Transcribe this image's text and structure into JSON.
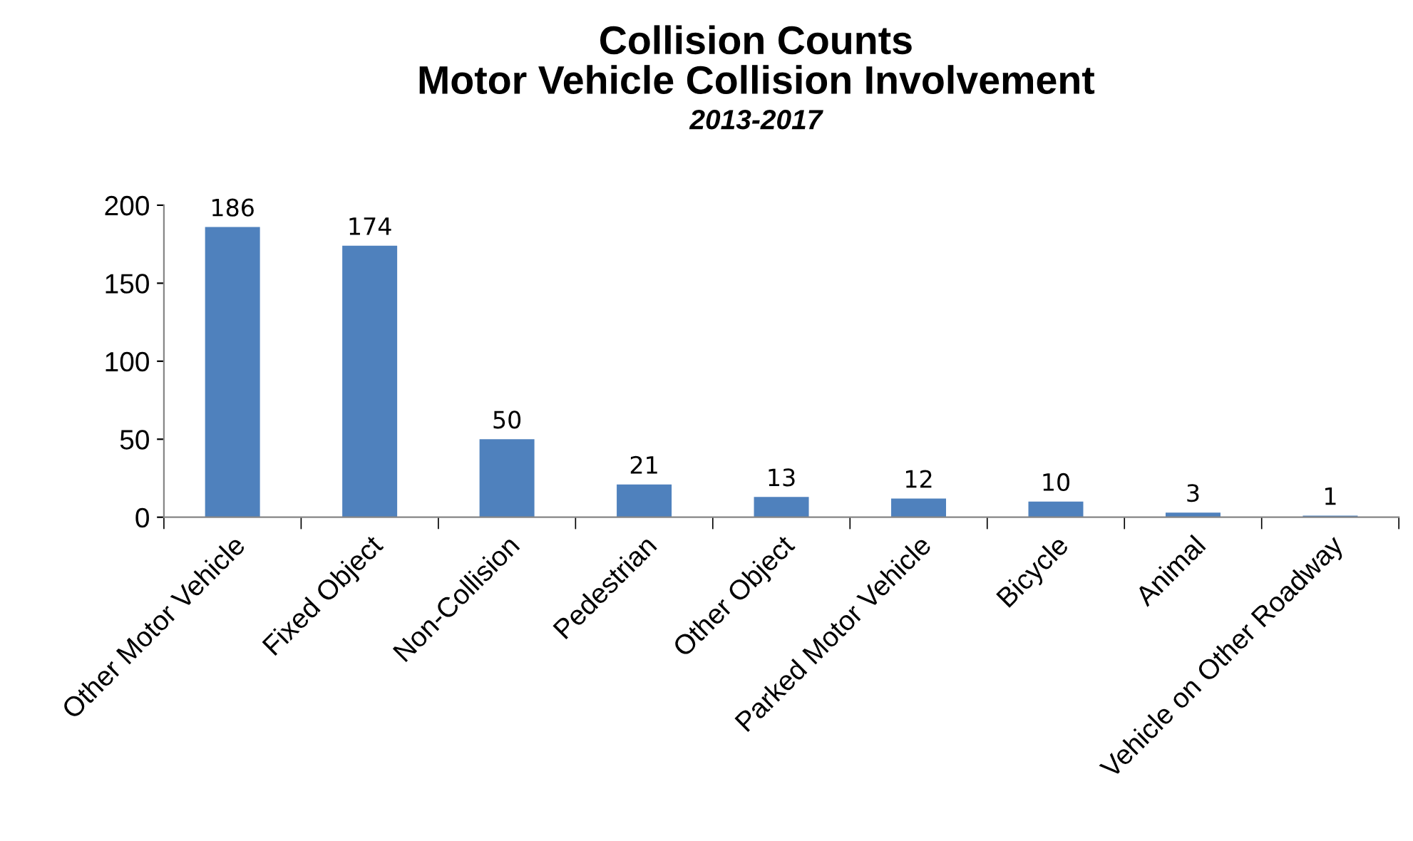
{
  "chart_data": {
    "type": "bar",
    "title": "Collision Counts\nMotor Vehicle Collision Involvement",
    "subtitle": "2013-2017",
    "categories": [
      "Other Motor Vehicle",
      "Fixed Object",
      "Non-Collision",
      "Pedestrian",
      "Other Object",
      "Parked Motor Vehicle",
      "Bicycle",
      "Animal",
      "Vehicle on Other Roadway"
    ],
    "values": [
      186,
      174,
      50,
      21,
      13,
      12,
      10,
      3,
      1
    ],
    "color": "#4f81bd",
    "ylim": [
      0,
      200
    ],
    "yticks": [
      0,
      50,
      100,
      150,
      200
    ],
    "grid": false,
    "data_labels": true
  }
}
